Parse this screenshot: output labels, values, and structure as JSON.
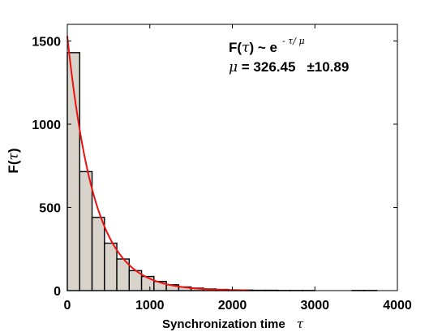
{
  "chart_data": {
    "type": "bar",
    "subtype": "histogram-with-fit",
    "xlabel_text": "Synchronization time",
    "xlabel_symbol": "τ",
    "ylabel_text": "F(",
    "ylabel_symbol": "τ",
    "ylabel_close": ")",
    "xlim": [
      0,
      4000
    ],
    "ylim": [
      0,
      1600
    ],
    "xticks": [
      "0",
      "1000",
      "2000",
      "3000",
      "4000"
    ],
    "xtick_values": [
      0,
      1000,
      2000,
      3000,
      4000
    ],
    "yticks": [
      "0",
      "500",
      "1000",
      "1500"
    ],
    "ytick_values": [
      0,
      500,
      1000,
      1500
    ],
    "grid": false,
    "bin_width": 150,
    "bin_starts": [
      0,
      150,
      300,
      450,
      600,
      750,
      900,
      1050,
      1200,
      1350,
      1500,
      1650,
      1800,
      1950,
      2100,
      2250,
      2400,
      2550,
      2700,
      2850,
      3000,
      3150,
      3300,
      3450,
      3600
    ],
    "counts": [
      1430,
      715,
      440,
      285,
      190,
      120,
      85,
      55,
      35,
      22,
      15,
      10,
      7,
      4,
      3,
      2,
      2,
      1,
      1,
      1,
      0,
      0,
      0,
      1,
      1
    ],
    "bar_color": "#d8d4cc",
    "bar_edge_color": "#000000",
    "fit": {
      "name": "exponential fit",
      "color": "#ee1111",
      "amplitude": 1530,
      "mu": 326.45,
      "x_range": [
        0,
        2200
      ]
    },
    "annotation": {
      "line1_prefix": "F(",
      "line1_symbol": "τ",
      "line1_mid": ") ~ e",
      "line1_exponent": "- τ/ μ",
      "line2_symbol": "μ",
      "line2_value": " = 326.45",
      "line2_error": "±10.89"
    }
  }
}
